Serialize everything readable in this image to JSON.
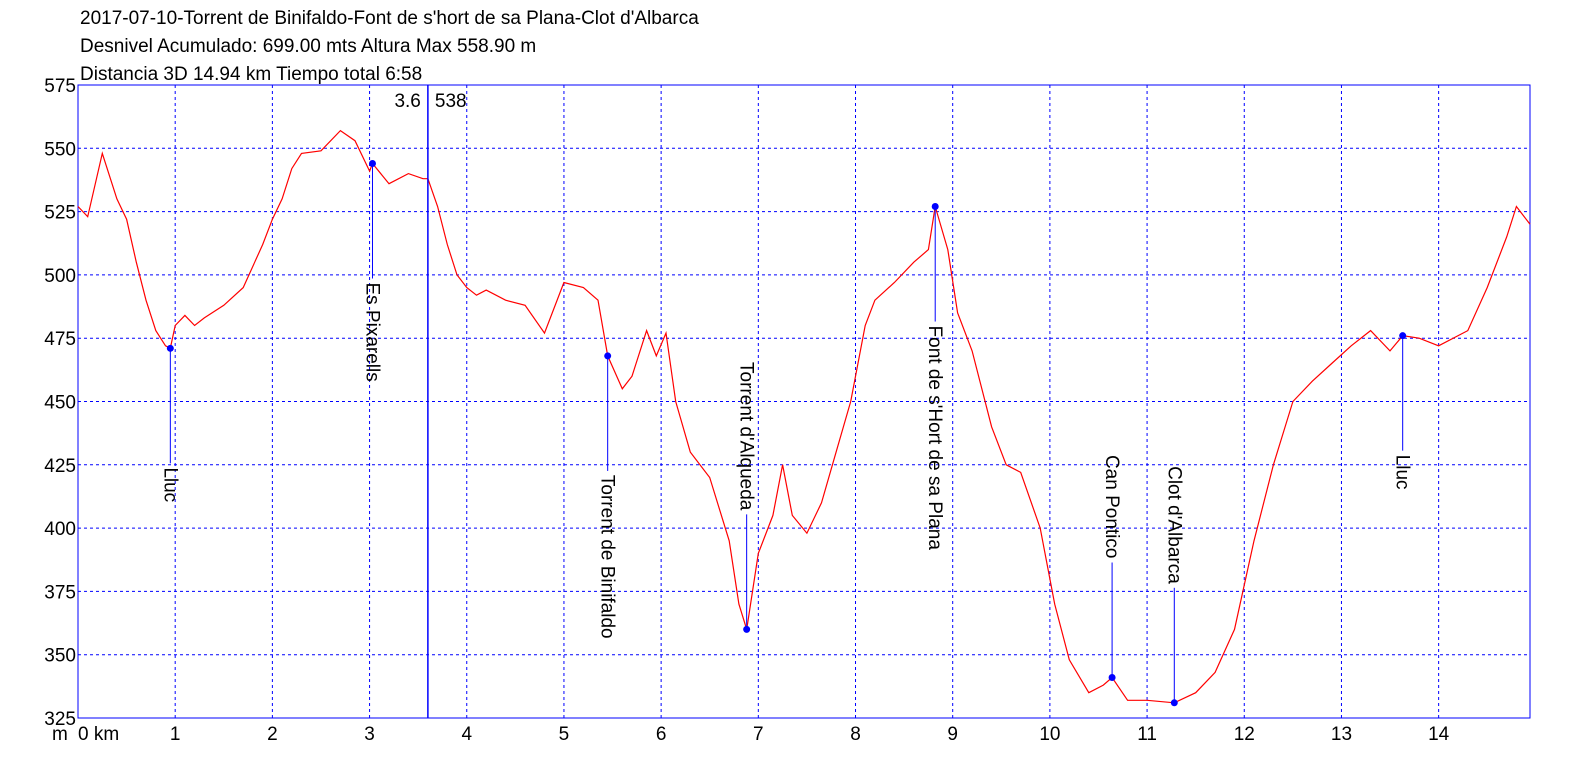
{
  "chart_data": {
    "type": "line",
    "title_lines": [
      "2017-07-10-Torrent de Binifaldo-Font de s'hort de sa Plana-Clot d'Albarca",
      "Desnivel Acumulado: 699.00 mts  Altura Max 558.90 m",
      "Distancia 3D 14.94 km  Tiempo total 6:58"
    ],
    "y_label": "m",
    "xlim": [
      0,
      14.94
    ],
    "ylim": [
      325,
      575
    ],
    "xticks": [
      {
        "value": 0,
        "label": "0 km"
      },
      1,
      2,
      3,
      4,
      5,
      6,
      7,
      8,
      9,
      10,
      11,
      12,
      13,
      14
    ],
    "yticks": [
      325,
      350,
      375,
      400,
      425,
      450,
      475,
      500,
      525,
      550,
      575
    ],
    "grid": true,
    "x": [
      0,
      0.1,
      0.25,
      0.4,
      0.5,
      0.6,
      0.7,
      0.8,
      0.9,
      0.95,
      1.0,
      1.1,
      1.2,
      1.3,
      1.5,
      1.7,
      1.9,
      2.0,
      2.1,
      2.2,
      2.3,
      2.5,
      2.7,
      2.85,
      3.0,
      3.03,
      3.2,
      3.4,
      3.55,
      3.6,
      3.7,
      3.8,
      3.9,
      4.0,
      4.1,
      4.2,
      4.4,
      4.6,
      4.8,
      5.0,
      5.2,
      5.35,
      5.45,
      5.6,
      5.7,
      5.85,
      5.95,
      6.05,
      6.15,
      6.3,
      6.5,
      6.7,
      6.8,
      6.88,
      7.0,
      7.15,
      7.25,
      7.35,
      7.5,
      7.65,
      7.8,
      7.95,
      8.1,
      8.2,
      8.4,
      8.6,
      8.75,
      8.82,
      8.95,
      9.05,
      9.2,
      9.4,
      9.55,
      9.7,
      9.9,
      10.05,
      10.2,
      10.4,
      10.55,
      10.64,
      10.8,
      11.0,
      11.28,
      11.5,
      11.7,
      11.9,
      12.1,
      12.3,
      12.5,
      12.7,
      12.9,
      13.1,
      13.3,
      13.5,
      13.63,
      13.8,
      14.0,
      14.3,
      14.5,
      14.7,
      14.8,
      14.94
    ],
    "series": [
      {
        "name": "Altura",
        "color": "#ff0000",
        "values": [
          527,
          523,
          548,
          530,
          522,
          505,
          490,
          478,
          472,
          471,
          480,
          484,
          480,
          483,
          488,
          495,
          512,
          522,
          530,
          542,
          548,
          549,
          557,
          553,
          541,
          544,
          536,
          540,
          538,
          538,
          527,
          512,
          500,
          495,
          492,
          494,
          490,
          488,
          477,
          497,
          495,
          490,
          468,
          455,
          460,
          478,
          468,
          477,
          450,
          430,
          420,
          395,
          370,
          360,
          390,
          405,
          425,
          405,
          398,
          410,
          430,
          450,
          480,
          490,
          497,
          505,
          510,
          527,
          510,
          485,
          470,
          440,
          425,
          422,
          400,
          370,
          348,
          335,
          338,
          341,
          332,
          332,
          331,
          335,
          343,
          360,
          395,
          425,
          450,
          458,
          465,
          472,
          478,
          470,
          476,
          475,
          472,
          478,
          495,
          515,
          527,
          520
        ]
      }
    ],
    "waypoints": [
      {
        "name": "Lluc",
        "x": 0.95,
        "y": 471
      },
      {
        "name": "Es Pixarells",
        "x": 3.03,
        "y": 544
      },
      {
        "name": "Torrent de Binifaldo",
        "x": 5.45,
        "y": 468
      },
      {
        "name": "Torrent d'Alqueda",
        "x": 6.88,
        "y": 360
      },
      {
        "name": "Font de s'Hort de sa Plana",
        "x": 8.82,
        "y": 527
      },
      {
        "name": "Can Pontico",
        "x": 10.64,
        "y": 341
      },
      {
        "name": "Clot d'Albarca",
        "x": 11.28,
        "y": 331
      },
      {
        "name": "Lluc",
        "x": 13.63,
        "y": 476
      }
    ],
    "cursor": {
      "x": 3.6,
      "y": 538
    }
  }
}
